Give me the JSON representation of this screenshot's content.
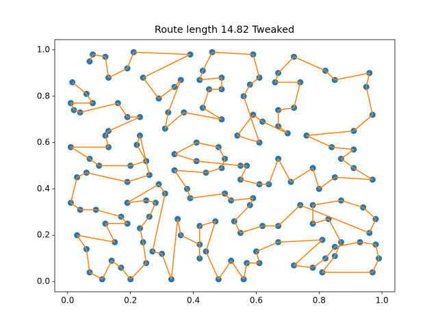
{
  "chart_data": {
    "type": "route",
    "title": "Route length 14.82 Tweaked",
    "x": [
      0.015,
      0.06,
      0.08,
      0.01,
      0.02,
      0.04,
      0.16,
      0.19,
      0.23,
      0.13,
      0.12,
      0.13,
      0.01,
      0.07,
      0.1,
      0.2,
      0.25,
      0.22,
      0.23,
      0.26,
      0.19,
      0.06,
      0.03,
      0.01,
      0.04,
      0.09,
      0.17,
      0.19,
      0.12,
      0.15,
      0.03,
      0.06,
      0.07,
      0.11,
      0.14,
      0.17,
      0.2,
      0.25,
      0.24,
      0.23,
      0.26,
      0.28,
      0.25,
      0.19,
      0.29,
      0.31,
      0.27,
      0.3,
      0.33,
      0.35,
      0.36,
      0.42,
      0.42,
      0.42,
      0.47,
      0.44,
      0.48,
      0.52,
      0.56,
      0.57,
      0.61,
      0.6,
      0.67,
      0.81,
      0.72,
      0.78,
      0.82,
      0.85,
      0.93,
      0.98,
      0.99,
      0.97,
      0.81,
      0.85,
      0.87,
      0.83,
      0.78,
      0.78,
      0.87,
      0.94,
      0.98,
      0.96,
      0.74,
      0.67,
      0.62,
      0.55,
      0.53,
      0.58,
      0.59,
      0.52,
      0.5,
      0.39,
      0.38,
      0.34,
      0.44,
      0.49,
      0.5,
      0.48,
      0.41,
      0.34,
      0.41,
      0.55,
      0.57,
      0.55,
      0.61,
      0.64,
      0.67,
      0.71,
      0.78,
      0.8,
      0.85,
      0.97,
      0.91,
      0.87,
      0.91,
      0.84,
      0.76,
      0.91,
      0.97,
      0.95,
      0.96,
      0.85,
      0.82,
      0.72,
      0.67,
      0.66,
      0.74,
      0.72,
      0.67,
      0.67,
      0.7,
      0.62,
      0.59,
      0.54,
      0.61,
      0.56,
      0.58,
      0.61,
      0.59,
      0.46,
      0.43,
      0.42,
      0.49,
      0.49,
      0.45,
      0.43,
      0.49,
      0.37,
      0.31,
      0.32,
      0.36,
      0.34,
      0.29,
      0.24,
      0.39,
      0.21,
      0.19,
      0.13,
      0.12,
      0.08,
      0.07
    ],
    "values": [
      0.86,
      0.81,
      0.77,
      0.77,
      0.74,
      0.73,
      0.77,
      0.71,
      0.71,
      0.65,
      0.63,
      0.58,
      0.58,
      0.53,
      0.5,
      0.5,
      0.52,
      0.59,
      0.63,
      0.46,
      0.43,
      0.47,
      0.45,
      0.34,
      0.31,
      0.31,
      0.28,
      0.25,
      0.25,
      0.17,
      0.2,
      0.14,
      0.04,
      0.01,
      0.09,
      0.06,
      0.01,
      0.08,
      0.17,
      0.23,
      0.28,
      0.34,
      0.35,
      0.34,
      0.42,
      0.38,
      0.13,
      0.12,
      0.01,
      0.27,
      0.2,
      0.16,
      0.1,
      0.24,
      0.26,
      0.13,
      0.01,
      0.09,
      0.01,
      0.08,
      0.08,
      0.13,
      0.17,
      0.18,
      0.07,
      0.06,
      0.1,
      0.15,
      0.17,
      0.16,
      0.1,
      0.04,
      0.04,
      0.11,
      0.17,
      0.27,
      0.25,
      0.33,
      0.35,
      0.32,
      0.27,
      0.21,
      0.33,
      0.24,
      0.24,
      0.21,
      0.26,
      0.33,
      0.36,
      0.35,
      0.38,
      0.36,
      0.4,
      0.48,
      0.47,
      0.49,
      0.53,
      0.58,
      0.6,
      0.55,
      0.52,
      0.5,
      0.5,
      0.44,
      0.42,
      0.42,
      0.53,
      0.43,
      0.49,
      0.4,
      0.45,
      0.44,
      0.49,
      0.53,
      0.57,
      0.58,
      0.63,
      0.65,
      0.72,
      0.84,
      0.9,
      0.87,
      0.91,
      0.97,
      0.9,
      0.86,
      0.86,
      0.75,
      0.74,
      0.67,
      0.64,
      0.69,
      0.72,
      0.63,
      0.6,
      0.8,
      0.85,
      0.88,
      0.98,
      0.99,
      0.91,
      0.87,
      0.88,
      0.83,
      0.83,
      0.75,
      0.7,
      0.73,
      0.66,
      0.73,
      0.87,
      0.84,
      0.79,
      0.88,
      0.98,
      0.99,
      0.92,
      0.88,
      0.97,
      0.98,
      0.95
    ],
    "line_color": "#ff7f0e",
    "marker_color": "#1f77b4",
    "xlim": [
      -0.041,
      1.041
    ],
    "ylim": [
      -0.044,
      1.044
    ],
    "xticks": [
      {
        "value": 0,
        "label": "0.0"
      },
      {
        "value": 0.2,
        "label": "0.2"
      },
      {
        "value": 0.4,
        "label": "0.4"
      },
      {
        "value": 0.6,
        "label": "0.6"
      },
      {
        "value": 0.8,
        "label": "0.8"
      },
      {
        "value": 1,
        "label": "1.0"
      }
    ],
    "yticks": [
      {
        "value": 0,
        "label": "0.0"
      },
      {
        "value": 0.2,
        "label": "0.2"
      },
      {
        "value": 0.4,
        "label": "0.4"
      },
      {
        "value": 0.6,
        "label": "0.6"
      },
      {
        "value": 0.8,
        "label": "0.8"
      },
      {
        "value": 1,
        "label": "1.0"
      }
    ]
  }
}
